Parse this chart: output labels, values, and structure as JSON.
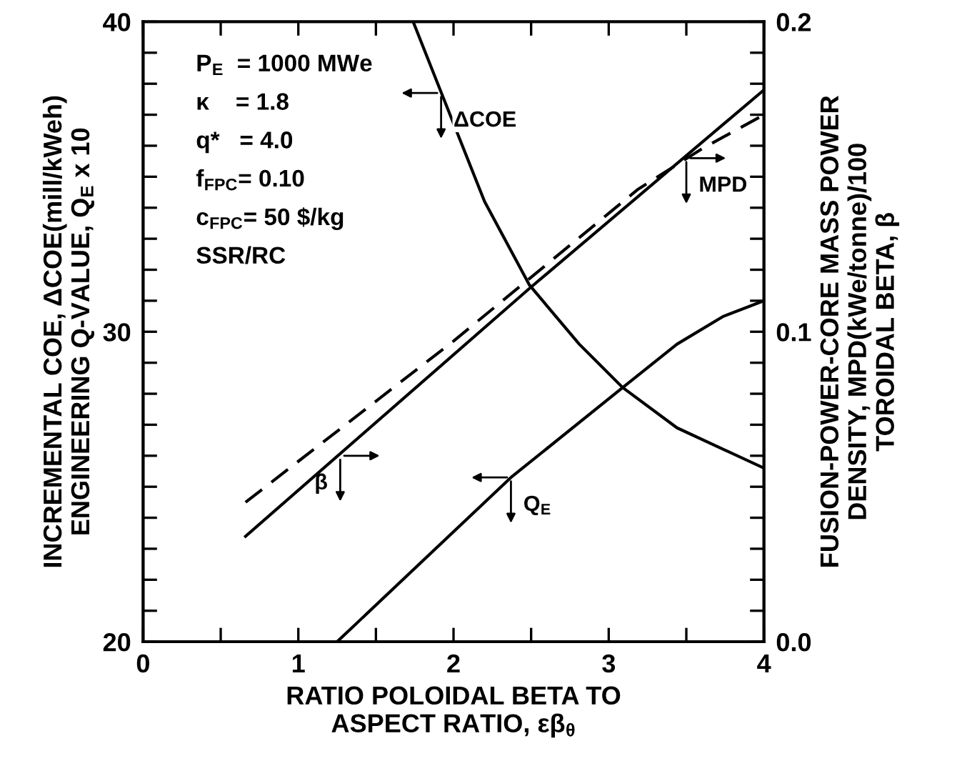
{
  "chart_data": {
    "type": "line",
    "xlabel": "RATIO POLOIDAL BETA TO\nASPECT RATIO, εβ$_{θ}$",
    "ylabel": "INCREMENTAL COE, ΔCOE(mill/kWeh)\nENGINEERING Q-VALUE, Q$_{E}$ x 10",
    "y2label": "FUSION-POWER-CORE MASS POWER\nDENSITY, MPD(kWe/tonne)/100\nTOROIDAL BETA, β",
    "xlim": [
      0,
      4
    ],
    "ylim": [
      20,
      40
    ],
    "y2lim": [
      0,
      0.2
    ],
    "xticks": [
      0,
      {
        "value": 0.5,
        "label": null
      },
      1,
      {
        "value": 1.5,
        "label": null
      },
      2,
      {
        "value": 2.5,
        "label": null
      },
      3,
      {
        "value": 3.5,
        "label": null
      },
      4
    ],
    "yticks": [
      20,
      {
        "value": 21,
        "label": null
      },
      {
        "value": 22,
        "label": null
      },
      {
        "value": 23,
        "label": null
      },
      {
        "value": 24,
        "label": null
      },
      {
        "value": 25,
        "label": null
      },
      {
        "value": 26,
        "label": null
      },
      {
        "value": 27,
        "label": null
      },
      {
        "value": 28,
        "label": null
      },
      {
        "value": 29,
        "label": null
      },
      30,
      {
        "value": 31,
        "label": null
      },
      {
        "value": 32,
        "label": null
      },
      {
        "value": 33,
        "label": null
      },
      {
        "value": 34,
        "label": null
      },
      {
        "value": 35,
        "label": null
      },
      {
        "value": 36,
        "label": null
      },
      {
        "value": 37,
        "label": null
      },
      {
        "value": 38,
        "label": null
      },
      {
        "value": 39,
        "label": null
      },
      40
    ],
    "y2ticks": [
      {
        "value": 0,
        "label": "0.0"
      },
      {
        "value": 0.01,
        "label": null
      },
      {
        "value": 0.02,
        "label": null
      },
      {
        "value": 0.03,
        "label": null
      },
      {
        "value": 0.04,
        "label": null
      },
      {
        "value": 0.05,
        "label": null
      },
      {
        "value": 0.06,
        "label": null
      },
      {
        "value": 0.07,
        "label": null
      },
      {
        "value": 0.08,
        "label": null
      },
      {
        "value": 0.09,
        "label": null
      },
      0.1,
      {
        "value": 0.11,
        "label": null
      },
      {
        "value": 0.12,
        "label": null
      },
      {
        "value": 0.13,
        "label": null
      },
      {
        "value": 0.14,
        "label": null
      },
      {
        "value": 0.15,
        "label": null
      },
      {
        "value": 0.16,
        "label": null
      },
      {
        "value": 0.17,
        "label": null
      },
      {
        "value": 0.18,
        "label": null
      },
      {
        "value": 0.19,
        "label": null
      },
      0.2
    ],
    "grid": false,
    "legend": false,
    "marker": "none",
    "series": [
      {
        "color": "#000000",
        "line_style": "solid",
        "x": [
          1.74,
          1.93,
          2.2,
          2.49,
          2.81,
          3.09,
          3.44,
          4.0
        ],
        "values": [
          40.0,
          37.6,
          34.2,
          31.5,
          29.6,
          28.2,
          26.9,
          25.6
        ]
      },
      {
        "color": "#000000",
        "line_style": "solid",
        "x": [
          1.25,
          2.37,
          3.09,
          3.44,
          3.74,
          4.0
        ],
        "values": [
          20.0,
          25.3,
          28.2,
          29.6,
          30.5,
          31.0
        ]
      },
      {
        "color": "#000000",
        "line_style": "solid",
        "axis": "y2",
        "x": [
          0.66,
          2.49,
          4.0
        ],
        "values": [
          0.034,
          0.114,
          0.178
        ]
      },
      {
        "color": "#000000",
        "line_style": "dashed",
        "axis": "y2",
        "x": [
          0.66,
          2.0,
          3.19,
          3.6,
          4.0
        ],
        "values": [
          0.045,
          0.097,
          0.146,
          0.159,
          0.17
        ]
      }
    ],
    "annotations": [
      "P$_{E}$  = 1000 MWe",
      "κ    = 1.8",
      "q*   = 4.0",
      "f$_{FPC}$= 0.10",
      "c$_{FPC}$= 50 $/kg",
      "SSR/RC",
      {
        "text": "ΔCOE",
        "x": 1.92,
        "y": 37.7
      },
      {
        "text": "Q$_{E}$",
        "x": 2.37,
        "y": 25.3
      },
      {
        "text": "β",
        "x": 1.27,
        "y": 26.0
      },
      {
        "text": "MPD",
        "x": 3.5,
        "y": 35.6
      }
    ]
  }
}
